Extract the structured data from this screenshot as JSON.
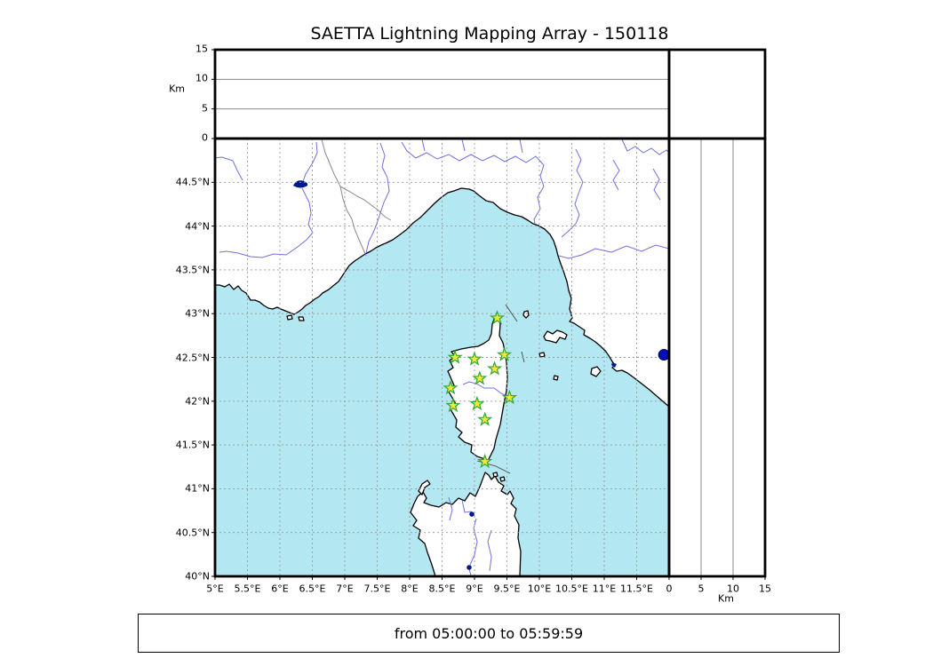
{
  "title": "SAETTA Lightning Mapping Array - 150118",
  "footer": {
    "text": "from 05:00:00 to 05:59:59"
  },
  "labels": {
    "km": "Km"
  },
  "colors": {
    "sea": "#b3e7f1",
    "land": "#ffffff",
    "coastline": "#000000",
    "river": "#7070dd",
    "country_border": "#8a8a8a",
    "map_grid": "#9a9a9a",
    "panel_grid": "#888888",
    "station_fill": "#f0e83a",
    "station_edge": "#2fa82f",
    "lightning_dot": "#0011bb",
    "lake": "#001a8c"
  },
  "chart_data": {
    "type": "scatter",
    "title": "SAETTA Lightning Mapping Array - 150118",
    "time_window": "from 05:00:00 to 05:59:59",
    "map_panel": {
      "xlim": [
        5,
        12
      ],
      "ylim": [
        40,
        45
      ],
      "grid": "dashed",
      "lon_ticks": [
        {
          "value": 5,
          "label": "5°E"
        },
        {
          "value": 5.5,
          "label": "5.5°E"
        },
        {
          "value": 6,
          "label": "6°E"
        },
        {
          "value": 6.5,
          "label": "6.5°E"
        },
        {
          "value": 7,
          "label": "7°E"
        },
        {
          "value": 7.5,
          "label": "7.5°E"
        },
        {
          "value": 8,
          "label": "8°E"
        },
        {
          "value": 8.5,
          "label": "8.5°E"
        },
        {
          "value": 9,
          "label": "9°E"
        },
        {
          "value": 9.5,
          "label": "9.5°E"
        },
        {
          "value": 10,
          "label": "10°E"
        },
        {
          "value": 10.5,
          "label": "10.5°E"
        },
        {
          "value": 11,
          "label": "11°E"
        },
        {
          "value": 11.5,
          "label": "11.5°E"
        }
      ],
      "lat_ticks": [
        {
          "value": 40,
          "label": "40°N"
        },
        {
          "value": 40.5,
          "label": "40.5°N"
        },
        {
          "value": 41,
          "label": "41°N"
        },
        {
          "value": 41.5,
          "label": "41.5°N"
        },
        {
          "value": 42,
          "label": "42°N"
        },
        {
          "value": 42.5,
          "label": "42.5°N"
        },
        {
          "value": 43,
          "label": "43°N"
        },
        {
          "value": 43.5,
          "label": "43.5°N"
        },
        {
          "value": 44,
          "label": "44°N"
        },
        {
          "value": 44.5,
          "label": "44.5°N"
        }
      ]
    },
    "altitude_panel": {
      "label": "Km",
      "lim": [
        0,
        15
      ],
      "ticks": [
        {
          "value": 0,
          "label": "0"
        },
        {
          "value": 5,
          "label": "5"
        },
        {
          "value": 10,
          "label": "10"
        },
        {
          "value": 15,
          "label": "15"
        }
      ],
      "gridlines": [
        5,
        10
      ]
    },
    "stations": [
      {
        "lon": 9.35,
        "lat": 42.95
      },
      {
        "lon": 8.7,
        "lat": 42.5
      },
      {
        "lon": 9.0,
        "lat": 42.48
      },
      {
        "lon": 9.46,
        "lat": 42.53
      },
      {
        "lon": 9.31,
        "lat": 42.37
      },
      {
        "lon": 9.08,
        "lat": 42.26
      },
      {
        "lon": 8.63,
        "lat": 42.15
      },
      {
        "lon": 9.54,
        "lat": 42.04
      },
      {
        "lon": 8.67,
        "lat": 41.95
      },
      {
        "lon": 9.04,
        "lat": 41.97
      },
      {
        "lon": 9.16,
        "lat": 41.79
      },
      {
        "lon": 9.16,
        "lat": 41.31
      }
    ],
    "lightning_sources": [
      {
        "lon": 11.92,
        "lat": 42.53
      }
    ]
  }
}
